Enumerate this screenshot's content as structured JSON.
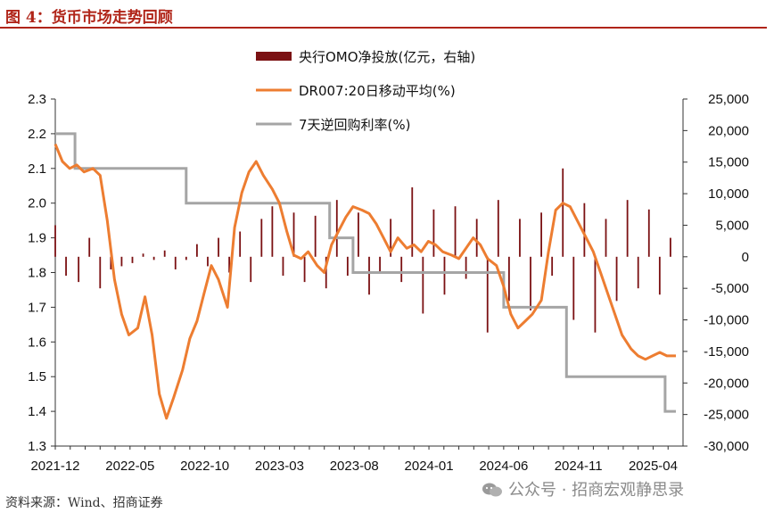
{
  "header": {
    "title": "图 4：货币市场走势回顾"
  },
  "footer": {
    "source": "资料来源：Wind、招商证券"
  },
  "watermark": {
    "text": "公众号 · 招商宏观静思录"
  },
  "chart_data": {
    "type": "line",
    "title": "图 4：货币市场走势回顾",
    "x_ticks": [
      "2021-12",
      "2022-05",
      "2022-10",
      "2023-03",
      "2023-08",
      "2024-01",
      "2024-06",
      "2024-11",
      "2025-04"
    ],
    "x_range": [
      "2021-12",
      "2025-05"
    ],
    "y_left": {
      "range": [
        1.3,
        2.3
      ],
      "ticks": [
        "1.3",
        "1.4",
        "1.5",
        "1.6",
        "1.7",
        "1.8",
        "1.9",
        "2.0",
        "2.1",
        "2.2",
        "2.3"
      ]
    },
    "y_right": {
      "range": [
        -30000,
        25000
      ],
      "ticks": [
        "-30,000",
        "-25,000",
        "-20,000",
        "-15,000",
        "-10,000",
        "-5,000",
        "0",
        "5,000",
        "10,000",
        "15,000",
        "20,000",
        "25,000"
      ]
    },
    "legend_position": "top-center",
    "colors": {
      "bar": "#7b1113",
      "dr007": "#ed7d31",
      "repo": "#a5a5a5"
    },
    "series": [
      {
        "name": "央行OMO净投放(亿元，右轴)",
        "type": "bar",
        "axis": "right",
        "color": "#7b1113",
        "x": [
          2021.92,
          2021.98,
          2022.05,
          2022.11,
          2022.17,
          2022.23,
          2022.29,
          2022.35,
          2022.41,
          2022.47,
          2022.53,
          2022.59,
          2022.65,
          2022.71,
          2022.77,
          2022.83,
          2022.89,
          2022.95,
          2023.01,
          2023.07,
          2023.13,
          2023.19,
          2023.25,
          2023.31,
          2023.37,
          2023.43,
          2023.49,
          2023.55,
          2023.61,
          2023.67,
          2023.73,
          2023.79,
          2023.85,
          2023.91,
          2023.97,
          2024.03,
          2024.09,
          2024.15,
          2024.21,
          2024.27,
          2024.33,
          2024.39,
          2024.45,
          2024.51,
          2024.57,
          2024.63,
          2024.69,
          2024.75,
          2024.81,
          2024.87,
          2024.93,
          2024.99,
          2025.05,
          2025.11,
          2025.17,
          2025.23,
          2025.29,
          2025.35
        ],
        "values": [
          5000,
          -3000,
          -4000,
          3000,
          -5000,
          -2000,
          -1500,
          -1000,
          500,
          -500,
          1000,
          -2000,
          -500,
          2000,
          -1500,
          3000,
          -2500,
          4000,
          -4000,
          6000,
          8000,
          -3000,
          7000,
          -4000,
          6500,
          -5000,
          9000,
          -3000,
          7000,
          -6000,
          -2500,
          6000,
          -4000,
          11000,
          -9000,
          7500,
          -6000,
          8000,
          -3500,
          6000,
          -12000,
          9000,
          -7000,
          6000,
          -8500,
          7000,
          -3000,
          14000,
          -10000,
          8500,
          -12000,
          6000,
          -7000,
          9000,
          -5000,
          7500,
          -6000,
          3000
        ]
      },
      {
        "name": "DR007:20日移动平均(%)",
        "type": "line",
        "axis": "left",
        "color": "#ed7d31",
        "x": [
          2021.92,
          2021.96,
          2022.0,
          2022.04,
          2022.08,
          2022.13,
          2022.17,
          2022.21,
          2022.25,
          2022.29,
          2022.33,
          2022.38,
          2022.42,
          2022.46,
          2022.5,
          2022.54,
          2022.58,
          2022.63,
          2022.67,
          2022.71,
          2022.75,
          2022.79,
          2022.83,
          2022.88,
          2022.92,
          2022.96,
          2023.0,
          2023.04,
          2023.08,
          2023.13,
          2023.17,
          2023.21,
          2023.25,
          2023.29,
          2023.33,
          2023.38,
          2023.42,
          2023.46,
          2023.5,
          2023.54,
          2023.58,
          2023.63,
          2023.67,
          2023.71,
          2023.75,
          2023.79,
          2023.83,
          2023.88,
          2023.92,
          2023.96,
          2024.0,
          2024.04,
          2024.08,
          2024.13,
          2024.17,
          2024.21,
          2024.25,
          2024.29,
          2024.33,
          2024.38,
          2024.42,
          2024.46,
          2024.5,
          2024.54,
          2024.58,
          2024.63,
          2024.67,
          2024.71,
          2024.75,
          2024.79,
          2024.83,
          2024.88,
          2024.92,
          2024.96,
          2025.0,
          2025.04,
          2025.08,
          2025.13,
          2025.17,
          2025.21,
          2025.25,
          2025.29,
          2025.33,
          2025.38
        ],
        "values": [
          2.17,
          2.12,
          2.1,
          2.11,
          2.09,
          2.1,
          2.08,
          1.95,
          1.78,
          1.68,
          1.62,
          1.64,
          1.73,
          1.62,
          1.45,
          1.38,
          1.44,
          1.52,
          1.61,
          1.66,
          1.74,
          1.82,
          1.78,
          1.7,
          1.93,
          2.03,
          2.09,
          2.12,
          2.08,
          2.04,
          2.0,
          1.92,
          1.85,
          1.84,
          1.86,
          1.82,
          1.8,
          1.88,
          1.92,
          1.96,
          1.99,
          1.98,
          1.97,
          1.94,
          1.9,
          1.86,
          1.9,
          1.87,
          1.88,
          1.86,
          1.89,
          1.88,
          1.86,
          1.85,
          1.84,
          1.87,
          1.9,
          1.88,
          1.84,
          1.82,
          1.76,
          1.68,
          1.64,
          1.66,
          1.68,
          1.72,
          1.86,
          1.98,
          2.0,
          1.99,
          1.95,
          1.9,
          1.86,
          1.8,
          1.74,
          1.68,
          1.62,
          1.58,
          1.56,
          1.55,
          1.56,
          1.57,
          1.56,
          1.56
        ]
      },
      {
        "name": "7天逆回购利率(%)",
        "type": "line",
        "axis": "left",
        "color": "#a5a5a5",
        "steps": [
          {
            "from": 2021.92,
            "to": 2022.03,
            "value": 2.2
          },
          {
            "from": 2022.03,
            "to": 2022.65,
            "value": 2.1
          },
          {
            "from": 2022.65,
            "to": 2023.45,
            "value": 2.0
          },
          {
            "from": 2023.45,
            "to": 2023.58,
            "value": 1.9
          },
          {
            "from": 2023.58,
            "to": 2024.42,
            "value": 1.8
          },
          {
            "from": 2024.42,
            "to": 2024.77,
            "value": 1.7
          },
          {
            "from": 2024.77,
            "to": 2025.32,
            "value": 1.5
          },
          {
            "from": 2025.32,
            "to": 2025.38,
            "value": 1.4
          }
        ]
      }
    ]
  }
}
